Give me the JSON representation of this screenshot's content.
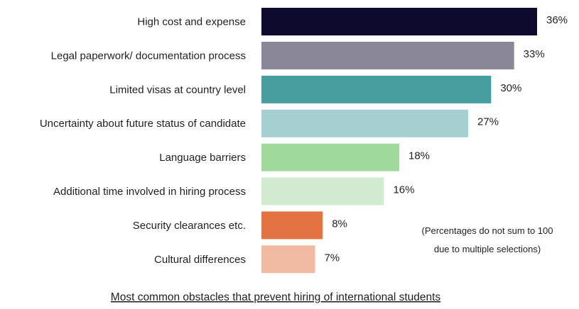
{
  "chart_data": {
    "type": "bar",
    "orientation": "horizontal",
    "title": "Most common obstacles that prevent hiring of international students",
    "categories": [
      "High cost and expense",
      "Legal paperwork/ documentation process",
      "Limited visas at country level",
      "Uncertainty about future status of candidate",
      "Language barriers",
      "Additional time involved in hiring process",
      "Security clearances etc.",
      "Cultural differences"
    ],
    "values": [
      36,
      33,
      30,
      27,
      18,
      16,
      8,
      7
    ],
    "value_labels": [
      "36%",
      "33%",
      "30%",
      "27%",
      "18%",
      "16%",
      "8%",
      "7%"
    ],
    "colors": [
      "#0d0a2e",
      "#8a8797",
      "#489e9e",
      "#a6cfd1",
      "#9fd99c",
      "#d2ecd2",
      "#e37341",
      "#f0b9a1"
    ],
    "xlim": [
      0,
      36
    ],
    "unit": "%",
    "grid": false,
    "legend": "none",
    "note_lines": [
      "(Percentages do not sum to 100",
      "due to multiple selections)"
    ]
  }
}
